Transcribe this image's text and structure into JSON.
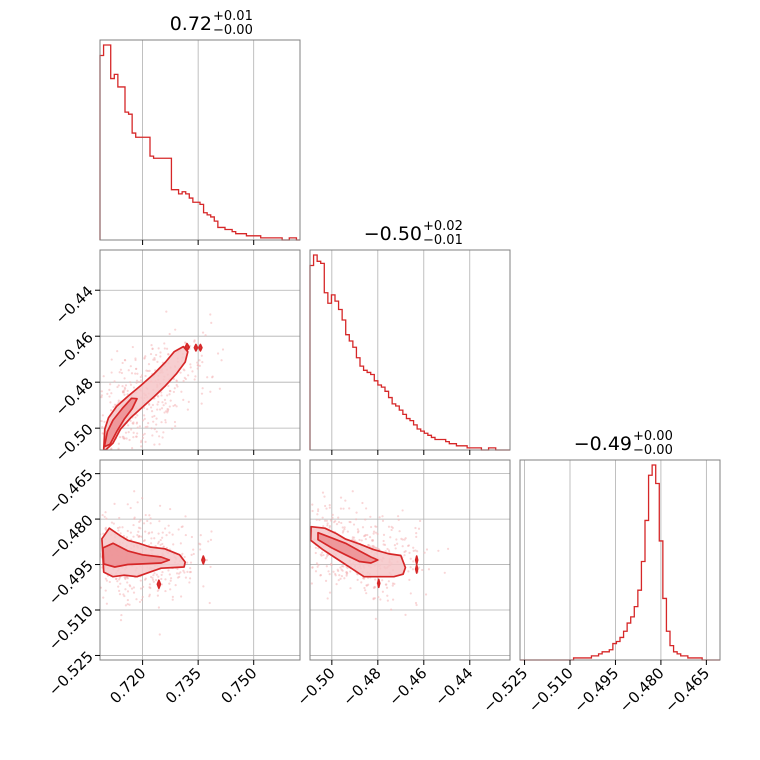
{
  "chart_data": {
    "type": "corner",
    "colors": {
      "main": "#d62728",
      "fill_outer": "#f6c6c8",
      "fill_inner": "#ec8e92",
      "points": "#f4b4b7"
    },
    "grid": true,
    "parameters": [
      {
        "range": [
          0.7085,
          0.7625
        ],
        "ticks": [
          0.72,
          0.735,
          0.75
        ],
        "tick_labels": [
          "0.720",
          "0.735",
          "0.750"
        ],
        "title": {
          "main": "0.72",
          "plus": "+0.01",
          "minus": "−0.00"
        }
      },
      {
        "range": [
          -0.5095,
          -0.4225
        ],
        "ticks": [
          -0.5,
          -0.48,
          -0.46,
          -0.44
        ],
        "tick_labels": [
          "−0.50",
          "−0.48",
          "−0.46",
          "−0.44"
        ],
        "title": {
          "main": "−0.50",
          "plus": "+0.02",
          "minus": "−0.01"
        }
      },
      {
        "range": [
          -0.5265,
          -0.4605
        ],
        "ticks": [
          -0.525,
          -0.51,
          -0.495,
          -0.48,
          -0.465
        ],
        "tick_labels": [
          "−0.525",
          "−0.510",
          "−0.495",
          "−0.480",
          "−0.465"
        ],
        "title": {
          "main": "−0.49",
          "plus": "+0.00",
          "minus": "−0.00"
        }
      }
    ],
    "histograms": [
      {
        "param": 0,
        "counts": [
          88,
          93,
          93,
          77,
          79,
          73,
          73,
          61,
          60,
          51,
          49,
          49,
          49,
          49,
          40,
          39,
          39,
          39,
          39,
          39,
          24,
          24,
          22,
          23,
          22,
          20,
          18,
          18,
          17,
          13,
          12,
          11,
          9,
          6,
          6,
          5,
          5,
          4,
          3,
          3,
          3,
          2,
          2,
          2,
          2,
          1,
          1,
          1,
          1,
          1,
          1,
          0,
          0,
          1,
          1,
          0
        ]
      },
      {
        "param": 1,
        "counts": [
          88,
          93,
          90,
          89,
          75,
          70,
          74,
          71,
          67,
          62,
          55,
          52,
          49,
          44,
          40,
          38,
          37,
          36,
          33,
          31,
          30,
          28,
          25,
          22,
          21,
          19,
          17,
          15,
          14,
          12,
          10,
          9,
          8,
          7,
          6,
          5,
          5,
          5,
          4,
          3,
          3,
          2,
          2,
          2,
          1,
          1,
          1,
          1,
          0,
          0,
          1,
          1,
          0,
          0,
          0,
          0
        ]
      },
      {
        "param": 2,
        "counts": [
          0,
          0,
          0,
          0,
          0,
          0,
          0,
          0,
          0,
          0,
          0,
          0,
          0,
          0,
          0,
          1,
          1,
          1,
          1,
          1,
          2,
          2,
          3,
          4,
          4,
          5,
          8,
          9,
          11,
          14,
          18,
          21,
          26,
          34,
          48,
          68,
          90,
          95,
          86,
          58,
          30,
          14,
          7,
          4,
          3,
          2,
          2,
          1,
          1,
          1,
          1,
          0,
          0,
          0,
          0,
          0
        ]
      }
    ],
    "contours_2d": [
      {
        "x_param": 0,
        "y_param": 1,
        "levels": [
          {
            "level": "outer",
            "points": [
              [
                0.7095,
                -0.5095
              ],
              [
                0.7098,
                -0.5005
              ],
              [
                0.7108,
                -0.4955
              ],
              [
                0.713,
                -0.4905
              ],
              [
                0.716,
                -0.4862
              ],
              [
                0.7195,
                -0.4815
              ],
              [
                0.723,
                -0.4765
              ],
              [
                0.7262,
                -0.4712
              ],
              [
                0.7285,
                -0.4668
              ],
              [
                0.731,
                -0.4645
              ],
              [
                0.7322,
                -0.4668
              ],
              [
                0.7315,
                -0.4712
              ],
              [
                0.7292,
                -0.4762
              ],
              [
                0.7262,
                -0.4815
              ],
              [
                0.7232,
                -0.4862
              ],
              [
                0.72,
                -0.4908
              ],
              [
                0.7168,
                -0.4955
              ],
              [
                0.714,
                -0.5005
              ],
              [
                0.712,
                -0.5065
              ],
              [
                0.71,
                -0.5095
              ]
            ]
          },
          {
            "level": "inner",
            "points": [
              [
                0.7097,
                -0.508
              ],
              [
                0.7105,
                -0.5015
              ],
              [
                0.712,
                -0.4965
              ],
              [
                0.7145,
                -0.4915
              ],
              [
                0.717,
                -0.487
              ],
              [
                0.7185,
                -0.4872
              ],
              [
                0.7172,
                -0.4915
              ],
              [
                0.715,
                -0.4962
              ],
              [
                0.713,
                -0.5015
              ],
              [
                0.7112,
                -0.507
              ]
            ]
          },
          {
            "level": "island",
            "points": [
              [
                0.7315,
                -0.4648
              ],
              [
                0.732,
                -0.4632
              ],
              [
                0.7326,
                -0.4648
              ],
              [
                0.732,
                -0.4662
              ]
            ]
          },
          {
            "level": "island",
            "points": [
              [
                0.734,
                -0.465
              ],
              [
                0.7344,
                -0.4636
              ],
              [
                0.7348,
                -0.465
              ],
              [
                0.7344,
                -0.4664
              ]
            ]
          },
          {
            "level": "island",
            "points": [
              [
                0.7352,
                -0.465
              ],
              [
                0.7356,
                -0.4636
              ],
              [
                0.736,
                -0.465
              ],
              [
                0.7356,
                -0.4664
              ]
            ]
          }
        ]
      },
      {
        "x_param": 0,
        "y_param": 2,
        "levels": [
          {
            "level": "outer",
            "points": [
              [
                0.709,
                -0.4865
              ],
              [
                0.711,
                -0.483
              ],
              [
                0.714,
                -0.4855
              ],
              [
                0.716,
                -0.487
              ],
              [
                0.719,
                -0.488
              ],
              [
                0.722,
                -0.4892
              ],
              [
                0.726,
                -0.4898
              ],
              [
                0.73,
                -0.4918
              ],
              [
                0.7315,
                -0.4942
              ],
              [
                0.7312,
                -0.4958
              ],
              [
                0.728,
                -0.496
              ],
              [
                0.725,
                -0.4962
              ],
              [
                0.722,
                -0.4975
              ],
              [
                0.7185,
                -0.499
              ],
              [
                0.715,
                -0.4985
              ],
              [
                0.712,
                -0.499
              ],
              [
                0.7095,
                -0.4975
              ]
            ]
          },
          {
            "level": "inner",
            "points": [
              [
                0.7093,
                -0.4895
              ],
              [
                0.712,
                -0.488
              ],
              [
                0.716,
                -0.4905
              ],
              [
                0.72,
                -0.4918
              ],
              [
                0.725,
                -0.4925
              ],
              [
                0.7272,
                -0.4935
              ],
              [
                0.725,
                -0.4945
              ],
              [
                0.72,
                -0.4948
              ],
              [
                0.716,
                -0.495
              ],
              [
                0.7125,
                -0.4958
              ],
              [
                0.7095,
                -0.4948
              ]
            ]
          },
          {
            "level": "island",
            "points": [
              [
                0.736,
                -0.4935
              ],
              [
                0.7364,
                -0.4922
              ],
              [
                0.7368,
                -0.4935
              ],
              [
                0.7364,
                -0.4948
              ]
            ]
          },
          {
            "level": "island",
            "points": [
              [
                0.724,
                -0.5015
              ],
              [
                0.7244,
                -0.5002
              ],
              [
                0.7248,
                -0.5015
              ],
              [
                0.7244,
                -0.5028
              ]
            ]
          }
        ]
      },
      {
        "x_param": 1,
        "y_param": 2,
        "levels": [
          {
            "level": "outer",
            "points": [
              [
                -0.509,
                -0.4825
              ],
              [
                -0.503,
                -0.483
              ],
              [
                -0.498,
                -0.4848
              ],
              [
                -0.494,
                -0.4866
              ],
              [
                -0.488,
                -0.4882
              ],
              [
                -0.482,
                -0.49
              ],
              [
                -0.475,
                -0.4915
              ],
              [
                -0.47,
                -0.492
              ],
              [
                -0.468,
                -0.496
              ],
              [
                -0.469,
                -0.4982
              ],
              [
                -0.473,
                -0.499
              ],
              [
                -0.48,
                -0.499
              ],
              [
                -0.486,
                -0.499
              ],
              [
                -0.492,
                -0.496
              ],
              [
                -0.498,
                -0.493
              ],
              [
                -0.504,
                -0.49
              ],
              [
                -0.5092,
                -0.487
              ]
            ]
          },
          {
            "level": "inner",
            "points": [
              [
                -0.506,
                -0.4845
              ],
              [
                -0.5,
                -0.4862
              ],
              [
                -0.494,
                -0.488
              ],
              [
                -0.488,
                -0.4905
              ],
              [
                -0.483,
                -0.4925
              ],
              [
                -0.48,
                -0.4935
              ],
              [
                -0.483,
                -0.4945
              ],
              [
                -0.488,
                -0.494
              ],
              [
                -0.494,
                -0.4918
              ],
              [
                -0.5,
                -0.4895
              ],
              [
                -0.506,
                -0.4868
              ]
            ]
          },
          {
            "level": "island",
            "points": [
              [
                -0.4635,
                -0.4935
              ],
              [
                -0.4631,
                -0.4922
              ],
              [
                -0.4627,
                -0.4935
              ],
              [
                -0.4631,
                -0.4948
              ]
            ]
          },
          {
            "level": "island",
            "points": [
              [
                -0.4635,
                -0.4965
              ],
              [
                -0.4631,
                -0.4952
              ],
              [
                -0.4627,
                -0.4965
              ],
              [
                -0.4631,
                -0.4978
              ]
            ]
          },
          {
            "level": "island",
            "points": [
              [
                -0.48,
                -0.5012
              ],
              [
                -0.4796,
                -0.4999
              ],
              [
                -0.4792,
                -0.5012
              ],
              [
                -0.4796,
                -0.5025
              ]
            ]
          }
        ]
      }
    ]
  }
}
